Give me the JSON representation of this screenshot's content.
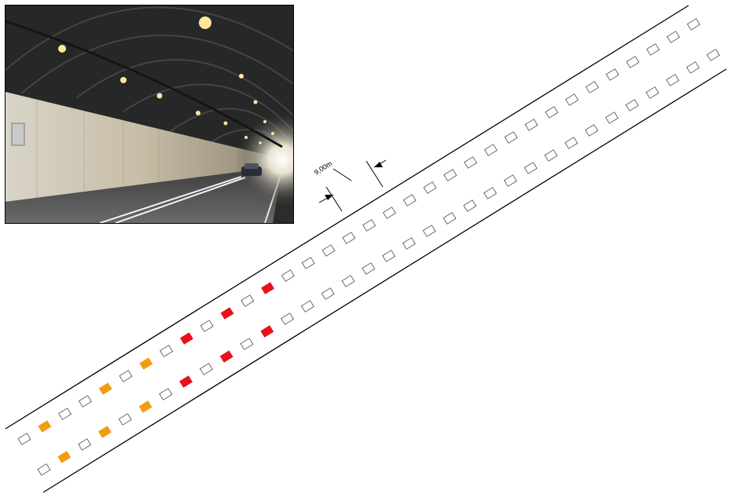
{
  "photo": {
    "subject": "tunnel-interior-photo"
  },
  "diagram": {
    "dimension_label": "9,00m",
    "colors": {
      "off": "#ffffff",
      "orange": "#f39c12",
      "red": "#e8101a",
      "stroke": "#000000"
    },
    "rows": {
      "upper": [
        "off",
        "orange",
        "off",
        "off",
        "orange",
        "off",
        "orange",
        "off",
        "red",
        "off",
        "red",
        "off",
        "red",
        "off",
        "off",
        "off",
        "off",
        "off",
        "off",
        "off",
        "off",
        "off",
        "off",
        "off",
        "off",
        "off",
        "off",
        "off",
        "off",
        "off",
        "off",
        "off",
        "off",
        "off"
      ],
      "lower": [
        "off",
        "orange",
        "off",
        "orange",
        "off",
        "orange",
        "off",
        "red",
        "off",
        "red",
        "off",
        "red",
        "off",
        "off",
        "off",
        "off",
        "off",
        "off",
        "off",
        "off",
        "off",
        "off",
        "off",
        "off",
        "off",
        "off",
        "off",
        "off",
        "off",
        "off",
        "off",
        "off",
        "off",
        "off"
      ]
    }
  }
}
